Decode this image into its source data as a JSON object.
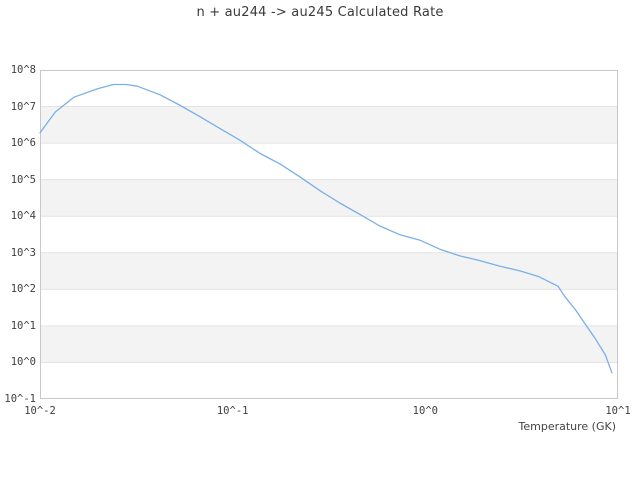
{
  "chart_data": {
    "type": "line",
    "title": "n + au244 -> au245 Calculated Rate",
    "xlabel": "Temperature (GK)",
    "ylabel": "",
    "x_scale": "log",
    "y_scale": "log",
    "xlim": [
      0.01,
      10
    ],
    "ylim": [
      0.1,
      100000000
    ],
    "x_tick_labels": [
      "10^-2",
      "10^-1",
      "10^0",
      "10^1"
    ],
    "y_tick_labels": [
      "10^8",
      "10^7",
      "10^6",
      "10^5",
      "10^4",
      "10^3",
      "10^2",
      "10^1",
      "10^0",
      "10^-1"
    ],
    "grid": "alternating-horizontal-decade-bands",
    "legend_position": "none",
    "colors": {
      "band": "#f3f3f3",
      "gridline": "#e4e4e4",
      "spine": "#c9c9c9",
      "text": "#3f3f3f",
      "background": "#ffffff"
    },
    "series": [
      {
        "name": "calculated-rate",
        "color": "#7aafe8",
        "points": [
          [
            0.01,
            1900000
          ],
          [
            0.011,
            3800000
          ],
          [
            0.012,
            7100000
          ],
          [
            0.015,
            18000000
          ],
          [
            0.02,
            31000000
          ],
          [
            0.024,
            40000000
          ],
          [
            0.028,
            40000000
          ],
          [
            0.032,
            36000000
          ],
          [
            0.042,
            21000000
          ],
          [
            0.053,
            11000000
          ],
          [
            0.068,
            5200000
          ],
          [
            0.086,
            2500000
          ],
          [
            0.109,
            1200000
          ],
          [
            0.139,
            520000
          ],
          [
            0.176,
            270000
          ],
          [
            0.223,
            120000
          ],
          [
            0.284,
            50000
          ],
          [
            0.36,
            23000
          ],
          [
            0.46,
            11000
          ],
          [
            0.58,
            5400
          ],
          [
            0.74,
            3100
          ],
          [
            0.94,
            2200
          ],
          [
            1.19,
            1250
          ],
          [
            1.51,
            820
          ],
          [
            1.92,
            610
          ],
          [
            2.44,
            430
          ],
          [
            3.1,
            320
          ],
          [
            3.9,
            220
          ],
          [
            4.9,
            120
          ],
          [
            5.0,
            100
          ],
          [
            5.3,
            63
          ],
          [
            6.0,
            28
          ],
          [
            6.7,
            12
          ],
          [
            7.6,
            4.6
          ],
          [
            8.6,
            1.6
          ],
          [
            9.3,
            0.52
          ]
        ]
      }
    ]
  }
}
